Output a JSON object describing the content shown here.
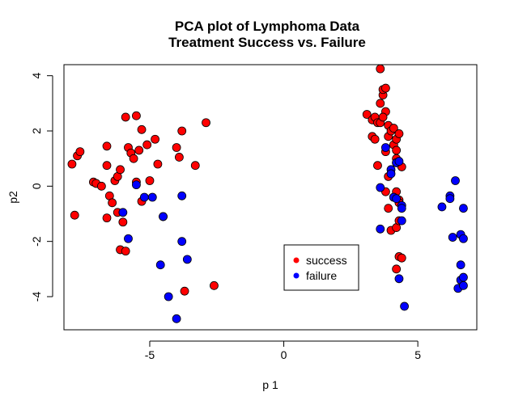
{
  "chart_data": {
    "type": "scatter",
    "title": "PCA plot of Lymphoma Data",
    "subtitle": "Treatment Success vs. Failure",
    "xlabel": "p 1",
    "ylabel": "p2",
    "xlim": [
      -8.2,
      7.2
    ],
    "ylim": [
      -5.2,
      4.4
    ],
    "xticks": [
      -5,
      0,
      5
    ],
    "xtick_labels": [
      "-5",
      "0",
      "5"
    ],
    "yticks": [
      -4,
      -2,
      0,
      2,
      4
    ],
    "ytick_labels": [
      "-4",
      "-2",
      "0",
      "2",
      "4"
    ],
    "grid": false,
    "legend_position": "bottom-center",
    "series": [
      {
        "name": "success",
        "color": "#ff0000",
        "points": [
          [
            -7.9,
            0.8
          ],
          [
            -7.7,
            1.1
          ],
          [
            -7.6,
            1.25
          ],
          [
            -7.8,
            -1.05
          ],
          [
            -7.1,
            0.15
          ],
          [
            -7.0,
            0.1
          ],
          [
            -6.8,
            0.0
          ],
          [
            -6.6,
            1.45
          ],
          [
            -6.6,
            0.75
          ],
          [
            -6.6,
            -1.15
          ],
          [
            -6.5,
            -0.35
          ],
          [
            -6.4,
            -0.6
          ],
          [
            -6.3,
            0.2
          ],
          [
            -6.2,
            0.35
          ],
          [
            -6.2,
            -0.95
          ],
          [
            -6.1,
            0.6
          ],
          [
            -6.1,
            -2.3
          ],
          [
            -6.0,
            -1.3
          ],
          [
            -5.9,
            -2.35
          ],
          [
            -5.9,
            2.5
          ],
          [
            -5.8,
            1.4
          ],
          [
            -5.7,
            1.2
          ],
          [
            -5.6,
            1.0
          ],
          [
            -5.5,
            2.55
          ],
          [
            -5.5,
            0.15
          ],
          [
            -5.4,
            1.3
          ],
          [
            -5.3,
            2.05
          ],
          [
            -5.3,
            -0.55
          ],
          [
            -5.1,
            1.5
          ],
          [
            -5.0,
            0.2
          ],
          [
            -4.8,
            1.7
          ],
          [
            -4.7,
            0.8
          ],
          [
            -4.5,
            -1.1
          ],
          [
            -4.0,
            1.4
          ],
          [
            -3.9,
            1.05
          ],
          [
            -3.8,
            2.0
          ],
          [
            -3.7,
            -3.8
          ],
          [
            -3.3,
            0.75
          ],
          [
            -2.9,
            2.3
          ],
          [
            -2.6,
            -3.6
          ],
          [
            3.1,
            2.6
          ],
          [
            3.3,
            2.4
          ],
          [
            3.3,
            1.8
          ],
          [
            3.4,
            2.5
          ],
          [
            3.4,
            1.7
          ],
          [
            3.5,
            2.3
          ],
          [
            3.6,
            2.3
          ],
          [
            3.5,
            0.75
          ],
          [
            3.6,
            3.0
          ],
          [
            3.6,
            4.25
          ],
          [
            3.7,
            3.3
          ],
          [
            3.7,
            3.5
          ],
          [
            3.8,
            3.55
          ],
          [
            3.8,
            2.7
          ],
          [
            3.7,
            2.5
          ],
          [
            3.9,
            2.2
          ],
          [
            3.9,
            1.8
          ],
          [
            3.8,
            1.25
          ],
          [
            3.9,
            0.35
          ],
          [
            3.8,
            -0.2
          ],
          [
            3.9,
            -0.8
          ],
          [
            4.0,
            -1.6
          ],
          [
            4.0,
            2.0
          ],
          [
            4.1,
            2.1
          ],
          [
            4.1,
            1.5
          ],
          [
            4.2,
            1.7
          ],
          [
            4.2,
            1.0
          ],
          [
            4.2,
            1.3
          ],
          [
            4.3,
            -0.5
          ],
          [
            4.3,
            -0.6
          ],
          [
            4.2,
            0.85
          ],
          [
            4.3,
            1.9
          ],
          [
            4.4,
            0.7
          ],
          [
            4.2,
            -0.2
          ],
          [
            4.1,
            -0.4
          ],
          [
            4.2,
            -1.5
          ],
          [
            4.3,
            -1.25
          ],
          [
            4.3,
            -2.55
          ],
          [
            4.4,
            -2.6
          ],
          [
            4.2,
            -3.0
          ]
        ]
      },
      {
        "name": "failure",
        "color": "#0000ff",
        "points": [
          [
            -6.0,
            -0.95
          ],
          [
            -5.8,
            -1.9
          ],
          [
            -5.5,
            0.05
          ],
          [
            -5.2,
            -0.4
          ],
          [
            -4.9,
            -0.4
          ],
          [
            -4.6,
            -2.85
          ],
          [
            -4.5,
            -1.1
          ],
          [
            -4.3,
            -4.0
          ],
          [
            -4.0,
            -4.8
          ],
          [
            -3.8,
            -0.35
          ],
          [
            -3.8,
            -2.0
          ],
          [
            -3.6,
            -2.65
          ],
          [
            3.6,
            -0.05
          ],
          [
            3.6,
            -1.55
          ],
          [
            3.8,
            1.4
          ],
          [
            4.0,
            0.6
          ],
          [
            4.0,
            0.45
          ],
          [
            4.1,
            -0.4
          ],
          [
            4.2,
            -0.45
          ],
          [
            4.2,
            0.85
          ],
          [
            4.3,
            0.9
          ],
          [
            4.4,
            -0.7
          ],
          [
            4.4,
            -0.8
          ],
          [
            4.4,
            -1.25
          ],
          [
            4.3,
            -3.35
          ],
          [
            4.5,
            -4.35
          ],
          [
            5.9,
            -0.75
          ],
          [
            6.2,
            -0.35
          ],
          [
            6.2,
            -0.45
          ],
          [
            6.3,
            -1.85
          ],
          [
            6.4,
            0.2
          ],
          [
            6.5,
            -3.7
          ],
          [
            6.6,
            -3.4
          ],
          [
            6.6,
            -1.75
          ],
          [
            6.6,
            -2.85
          ],
          [
            6.7,
            -1.9
          ],
          [
            6.7,
            -3.3
          ],
          [
            6.7,
            -3.6
          ],
          [
            6.7,
            -0.8
          ]
        ]
      }
    ]
  }
}
